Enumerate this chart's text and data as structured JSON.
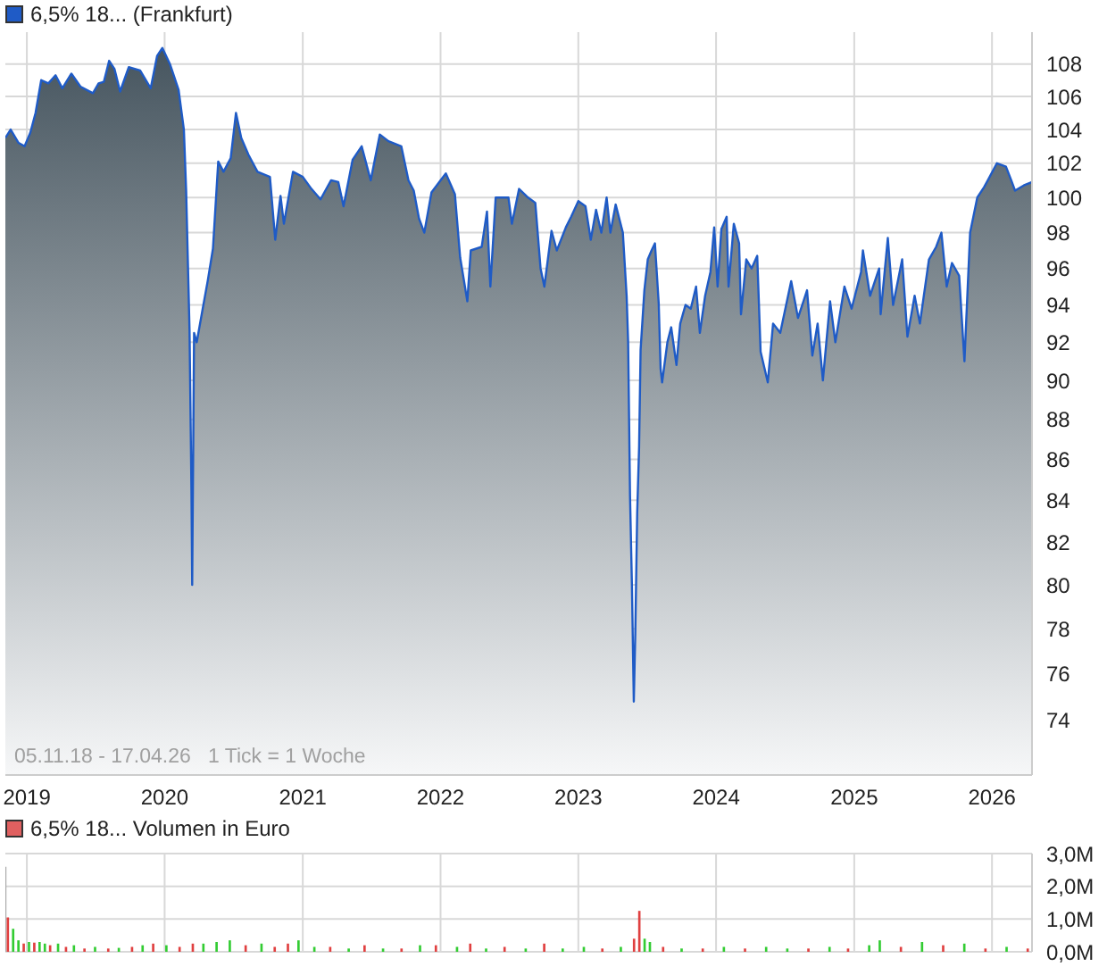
{
  "chart_data": [
    {
      "type": "area",
      "legend": "top left",
      "grid": true,
      "log": true,
      "xlim": [
        "2018-11-05",
        "2026-04-17"
      ],
      "xticks": [
        "2019",
        "2020",
        "2021",
        "2022",
        "2023",
        "2024",
        "2025",
        "2026"
      ],
      "ylim": [
        71.7,
        110
      ],
      "yticks": [
        74,
        76,
        78,
        80,
        82,
        84,
        86,
        88,
        90,
        92,
        94,
        96,
        98,
        100,
        102,
        104,
        106,
        108
      ],
      "annotations": [
        "05.11.18 - 17.04.26   1 Tick = 1 Woche"
      ],
      "x": [
        "2018-11-05",
        "2018-11-19",
        "2018-12-10",
        "2018-12-26",
        "2019-01-10",
        "2019-01-24",
        "2019-02-08",
        "2019-02-27",
        "2019-03-18",
        "2019-04-05",
        "2019-04-29",
        "2019-05-23",
        "2019-06-25",
        "2019-07-10",
        "2019-07-24",
        "2019-08-07",
        "2019-08-21",
        "2019-09-05",
        "2019-09-28",
        "2019-10-28",
        "2019-11-25",
        "2019-12-12",
        "2019-12-26",
        "2020-01-15",
        "2020-02-07",
        "2020-02-21",
        "2020-02-27",
        "2020-03-03",
        "2020-03-07",
        "2020-03-12",
        "2020-03-14",
        "2020-03-19",
        "2020-03-26",
        "2020-04-10",
        "2020-04-24",
        "2020-05-08",
        "2020-05-22",
        "2020-06-05",
        "2020-06-24",
        "2020-07-08",
        "2020-07-22",
        "2020-08-10",
        "2020-09-03",
        "2020-10-06",
        "2020-10-20",
        "2020-11-03",
        "2020-11-12",
        "2020-12-06",
        "2021-01-01",
        "2021-01-24",
        "2021-02-17",
        "2021-03-17",
        "2021-04-05",
        "2021-04-19",
        "2021-05-13",
        "2021-06-06",
        "2021-06-30",
        "2021-07-24",
        "2021-08-16",
        "2021-09-19",
        "2021-10-08",
        "2021-10-22",
        "2021-11-05",
        "2021-11-19",
        "2021-12-08",
        "2022-01-01",
        "2022-01-15",
        "2022-02-08",
        "2022-02-22",
        "2022-03-13",
        "2022-03-22",
        "2022-04-20",
        "2022-05-04",
        "2022-05-13",
        "2022-05-27",
        "2022-06-30",
        "2022-07-09",
        "2022-07-28",
        "2022-08-21",
        "2022-09-09",
        "2022-09-23",
        "2022-10-03",
        "2022-10-22",
        "2022-11-05",
        "2022-11-29",
        "2022-12-13",
        "2023-01-01",
        "2023-01-20",
        "2023-02-03",
        "2023-02-17",
        "2023-03-03",
        "2023-03-17",
        "2023-03-27",
        "2023-04-10",
        "2023-04-29",
        "2023-05-09",
        "2023-05-13",
        "2023-05-18",
        "2023-05-23",
        "2023-05-28",
        "2023-06-01",
        "2023-06-06",
        "2023-06-11",
        "2023-06-15",
        "2023-06-25",
        "2023-07-04",
        "2023-07-14",
        "2023-07-23",
        "2023-08-02",
        "2023-08-07",
        "2023-08-11",
        "2023-08-25",
        "2023-09-04",
        "2023-09-18",
        "2023-09-28",
        "2023-10-12",
        "2023-10-26",
        "2023-11-09",
        "2023-11-19",
        "2023-12-03",
        "2023-12-17",
        "2023-12-27",
        "2024-01-05",
        "2024-01-15",
        "2024-01-29",
        "2024-02-03",
        "2024-02-17",
        "2024-03-02",
        "2024-03-07",
        "2024-03-21",
        "2024-04-04",
        "2024-04-19",
        "2024-04-28",
        "2024-05-17",
        "2024-05-31",
        "2024-06-19",
        "2024-07-18",
        "2024-08-05",
        "2024-08-29",
        "2024-09-12",
        "2024-09-26",
        "2024-10-10",
        "2024-10-29",
        "2024-11-12",
        "2024-12-06",
        "2024-12-25",
        "2025-01-19",
        "2025-01-24",
        "2025-02-12",
        "2025-03-08",
        "2025-03-12",
        "2025-03-31",
        "2025-04-14",
        "2025-05-08",
        "2025-05-22",
        "2025-06-10",
        "2025-06-24",
        "2025-07-18",
        "2025-08-06",
        "2025-08-20",
        "2025-09-03",
        "2025-09-17",
        "2025-10-06",
        "2025-10-20",
        "2025-11-04",
        "2025-11-23",
        "2025-12-11",
        "2025-12-21",
        "2026-01-14",
        "2026-02-07",
        "2026-02-21",
        "2026-03-03",
        "2026-03-26",
        "2026-04-17"
      ],
      "series": [
        {
          "name": "6,5% 18... (Frankfurt)",
          "color": "#1f5bc6",
          "values": [
            103.5,
            104.0,
            103.2,
            103.0,
            103.8,
            105.0,
            107.0,
            106.8,
            107.3,
            106.5,
            107.4,
            106.6,
            106.2,
            106.8,
            106.9,
            108.2,
            107.7,
            106.3,
            107.8,
            107.6,
            106.5,
            108.5,
            109.0,
            108.0,
            106.4,
            104.0,
            100.4,
            96.0,
            92.6,
            84.5,
            80.0,
            92.5,
            92.0,
            93.7,
            95.3,
            97.1,
            102.1,
            101.5,
            102.3,
            105.0,
            103.5,
            102.5,
            101.5,
            101.2,
            97.6,
            100.1,
            98.5,
            101.5,
            101.2,
            100.5,
            99.9,
            101.0,
            100.9,
            99.5,
            102.2,
            103.0,
            101.0,
            103.7,
            103.3,
            103.0,
            101.0,
            100.4,
            98.8,
            98.0,
            100.3,
            101.0,
            101.4,
            100.2,
            96.6,
            94.2,
            97.0,
            97.2,
            99.2,
            95.0,
            100.0,
            100.0,
            98.5,
            100.5,
            100.0,
            99.7,
            96.0,
            95.0,
            98.1,
            97.0,
            98.3,
            98.9,
            99.8,
            99.5,
            97.6,
            99.3,
            98.0,
            100.0,
            98.0,
            99.6,
            98.0,
            94.5,
            92.0,
            84.2,
            80.0,
            74.8,
            77.8,
            83.4,
            86.6,
            91.6,
            94.8,
            96.5,
            97.0,
            97.4,
            94.1,
            90.6,
            89.9,
            92.0,
            92.8,
            90.8,
            93.0,
            94.0,
            93.8,
            95.0,
            92.5,
            94.5,
            95.8,
            98.3,
            95.0,
            98.2,
            98.9,
            95.0,
            98.5,
            97.4,
            93.5,
            96.5,
            96.0,
            96.7,
            91.5,
            89.9,
            93.0,
            92.5,
            95.3,
            93.3,
            94.8,
            91.3,
            93.0,
            90.0,
            94.2,
            92.0,
            95.0,
            93.8,
            95.8,
            97.0,
            94.5,
            96.0,
            93.5,
            97.7,
            94.0,
            96.5,
            92.3,
            94.5,
            93.0,
            96.5,
            97.2,
            98.0,
            95.0,
            96.3,
            95.6,
            91.0,
            98.0,
            100.0,
            100.6,
            101.0,
            102.0,
            101.8,
            101.0,
            100.4,
            100.7,
            100.9
          ]
        }
      ]
    },
    {
      "type": "bar",
      "legend": "top left",
      "grid": true,
      "tick_labels": "y",
      "xlim": [
        "2018-11-05",
        "2026-04-17"
      ],
      "xticks": [
        "2019",
        "2020",
        "2021",
        "2022",
        "2023",
        "2024",
        "2025",
        "2026"
      ],
      "ylim": [
        0,
        3000000
      ],
      "yticks": [
        {
          "value": 0,
          "label": "0,0M"
        },
        {
          "value": 1000000,
          "label": "1,0M"
        },
        {
          "value": 2000000,
          "label": "2,0M"
        },
        {
          "value": 3000000,
          "label": "3,0M"
        }
      ],
      "x": [
        "2018-11-05",
        "2018-11-12",
        "2018-11-26",
        "2018-12-10",
        "2018-12-24",
        "2019-01-07",
        "2019-01-21",
        "2019-02-04",
        "2019-02-18",
        "2019-03-04",
        "2019-03-25",
        "2019-04-15",
        "2019-05-06",
        "2019-06-03",
        "2019-07-01",
        "2019-08-05",
        "2019-09-02",
        "2019-10-07",
        "2019-11-04",
        "2019-12-02",
        "2020-01-06",
        "2020-02-10",
        "2020-03-16",
        "2020-04-13",
        "2020-05-18",
        "2020-06-22",
        "2020-08-03",
        "2020-09-14",
        "2020-10-19",
        "2020-11-23",
        "2020-12-21",
        "2021-02-01",
        "2021-03-15",
        "2021-05-03",
        "2021-06-14",
        "2021-08-02",
        "2021-09-20",
        "2021-11-08",
        "2021-12-20",
        "2022-02-14",
        "2022-03-21",
        "2022-05-02",
        "2022-06-20",
        "2022-08-15",
        "2022-10-03",
        "2022-11-21",
        "2023-01-16",
        "2023-03-06",
        "2023-04-24",
        "2023-05-29",
        "2023-06-12",
        "2023-06-26",
        "2023-07-10",
        "2023-08-14",
        "2023-10-02",
        "2023-11-27",
        "2024-01-22",
        "2024-03-18",
        "2024-05-13",
        "2024-07-08",
        "2024-09-02",
        "2024-10-28",
        "2024-12-16",
        "2025-02-10",
        "2025-03-10",
        "2025-05-05",
        "2025-06-30",
        "2025-08-25",
        "2025-10-20",
        "2025-12-15",
        "2026-02-09",
        "2026-04-06"
      ],
      "series": [
        {
          "name": "6,5% 18... Volumen in Euro",
          "color": "#e06060",
          "values": [
            2600000,
            1050000,
            700000,
            350000,
            250000,
            300000,
            280000,
            300000,
            250000,
            200000,
            250000,
            150000,
            200000,
            100000,
            150000,
            100000,
            120000,
            150000,
            200000,
            250000,
            200000,
            150000,
            250000,
            250000,
            300000,
            350000,
            200000,
            250000,
            150000,
            250000,
            350000,
            150000,
            150000,
            100000,
            200000,
            100000,
            100000,
            200000,
            200000,
            150000,
            250000,
            100000,
            150000,
            100000,
            250000,
            100000,
            150000,
            100000,
            150000,
            400000,
            1250000,
            400000,
            300000,
            150000,
            100000,
            100000,
            150000,
            100000,
            150000,
            100000,
            100000,
            150000,
            100000,
            200000,
            350000,
            150000,
            300000,
            200000,
            250000,
            100000,
            150000,
            100000
          ],
          "colors": [
            "#aaaaaa",
            "#e04040",
            "#33cc33",
            "#33cc33",
            "#e04040",
            "#33cc33",
            "#e04040",
            "#33cc33",
            "#33cc33",
            "#e04040",
            "#33cc33",
            "#e04040",
            "#33cc33",
            "#e04040",
            "#33cc33",
            "#e04040",
            "#33cc33",
            "#e04040",
            "#33cc33",
            "#e04040",
            "#33cc33",
            "#e04040",
            "#e04040",
            "#33cc33",
            "#33cc33",
            "#33cc33",
            "#e04040",
            "#33cc33",
            "#e04040",
            "#e04040",
            "#33cc33",
            "#33cc33",
            "#e04040",
            "#33cc33",
            "#e04040",
            "#33cc33",
            "#e04040",
            "#33cc33",
            "#e04040",
            "#33cc33",
            "#e04040",
            "#33cc33",
            "#e04040",
            "#33cc33",
            "#e04040",
            "#33cc33",
            "#33cc33",
            "#e04040",
            "#33cc33",
            "#e04040",
            "#e04040",
            "#33cc33",
            "#33cc33",
            "#e04040",
            "#33cc33",
            "#e04040",
            "#33cc33",
            "#e04040",
            "#33cc33",
            "#33cc33",
            "#e04040",
            "#33cc33",
            "#e04040",
            "#33cc33",
            "#33cc33",
            "#e04040",
            "#33cc33",
            "#e04040",
            "#33cc33",
            "#e04040",
            "#33cc33",
            "#e04040"
          ]
        }
      ]
    }
  ]
}
